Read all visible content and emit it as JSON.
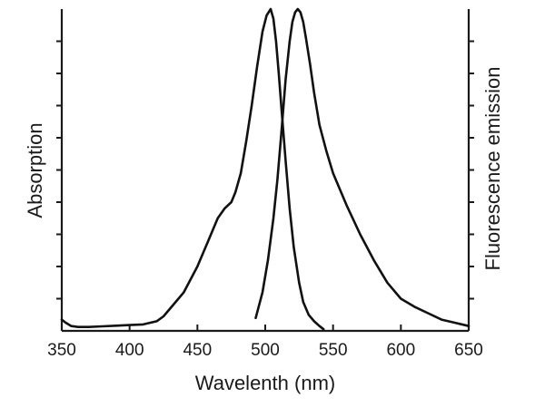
{
  "chart_data": {
    "type": "line",
    "title": "",
    "xlabel": "Wavelenth (nm)",
    "ylabel_left": "Absorption",
    "ylabel_right": "Fluorescence emission",
    "xlim": [
      350,
      650
    ],
    "ylim": [
      0,
      1
    ],
    "x_ticks": [
      350,
      400,
      450,
      500,
      550,
      600,
      650
    ],
    "y_minor_tick_count": 10,
    "grid": false,
    "legend": "none",
    "line_color": "#111111",
    "series": [
      {
        "x": [
          350,
          353,
          357,
          362,
          370,
          380,
          390,
          400,
          410,
          420,
          425,
          430,
          440,
          450,
          458,
          465,
          470,
          475,
          478,
          482,
          486,
          490,
          494,
          498,
          501,
          504,
          506,
          508,
          510,
          512,
          515,
          518,
          521,
          525,
          528,
          532,
          536,
          540,
          543
        ],
        "y": [
          0.035,
          0.025,
          0.015,
          0.012,
          0.012,
          0.014,
          0.016,
          0.018,
          0.02,
          0.03,
          0.045,
          0.07,
          0.12,
          0.2,
          0.28,
          0.35,
          0.38,
          0.4,
          0.43,
          0.49,
          0.59,
          0.7,
          0.82,
          0.93,
          0.98,
          1.0,
          0.97,
          0.9,
          0.8,
          0.69,
          0.53,
          0.38,
          0.26,
          0.15,
          0.09,
          0.05,
          0.03,
          0.015,
          0.005
        ]
      },
      {
        "x": [
          493,
          498,
          502,
          506,
          509,
          512,
          515,
          518,
          520,
          522,
          524,
          526,
          528,
          530,
          533,
          536,
          540,
          545,
          550,
          560,
          570,
          580,
          590,
          600,
          610,
          620,
          630,
          640,
          650
        ],
        "y": [
          0.04,
          0.12,
          0.22,
          0.35,
          0.47,
          0.62,
          0.78,
          0.9,
          0.96,
          0.99,
          1.0,
          0.99,
          0.96,
          0.91,
          0.83,
          0.74,
          0.64,
          0.56,
          0.49,
          0.39,
          0.3,
          0.22,
          0.15,
          0.1,
          0.075,
          0.055,
          0.035,
          0.025,
          0.015
        ]
      }
    ]
  }
}
